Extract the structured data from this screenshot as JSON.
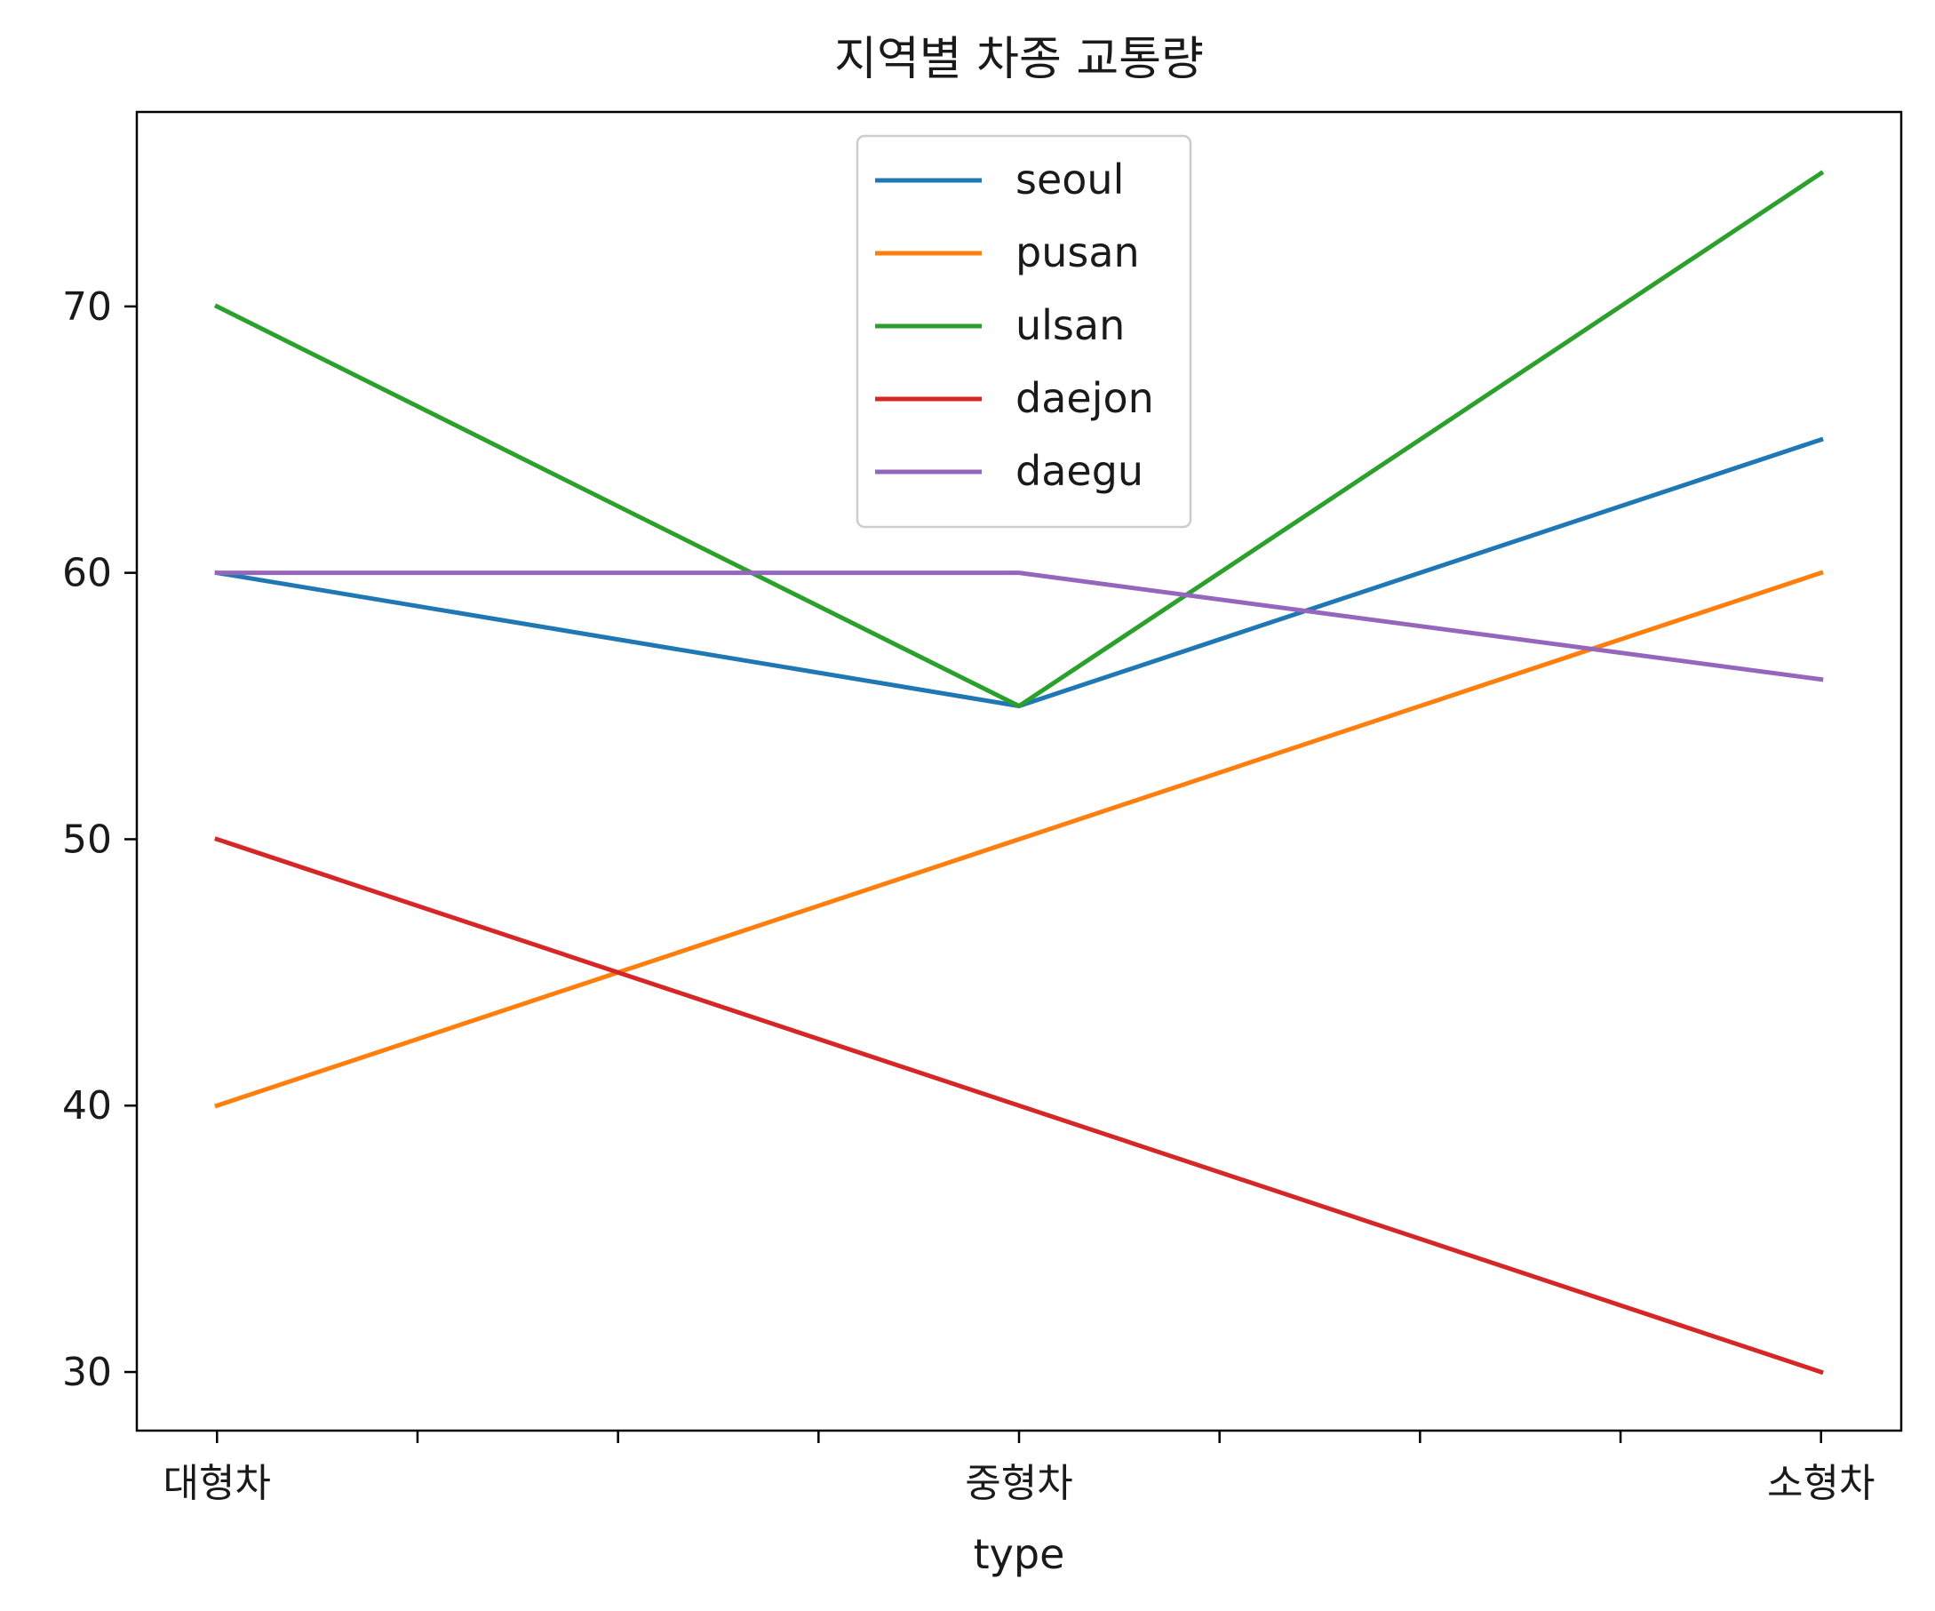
{
  "chart_data": {
    "type": "line",
    "title": "지역별 차종 교통량",
    "xlabel": "type",
    "ylabel": "",
    "categories": [
      "대형차",
      "중형차",
      "소형차"
    ],
    "xlim": [
      -0.1,
      2.1
    ],
    "ylim": [
      27.8,
      77.3
    ],
    "yticks": [
      30,
      40,
      50,
      60,
      70
    ],
    "minor_xticks": [
      0.25,
      0.5,
      0.75,
      1.25,
      1.5,
      1.75
    ],
    "grid": false,
    "legend_position": "upper-center",
    "series": [
      {
        "name": "seoul",
        "color": "#1f77b4",
        "values": [
          60,
          55,
          65
        ]
      },
      {
        "name": "pusan",
        "color": "#ff7f0e",
        "values": [
          40,
          50,
          60
        ]
      },
      {
        "name": "ulsan",
        "color": "#2ca02c",
        "values": [
          70,
          55,
          75
        ]
      },
      {
        "name": "daejon",
        "color": "#d62728",
        "values": [
          50,
          40,
          30
        ]
      },
      {
        "name": "daegu",
        "color": "#9467bd",
        "values": [
          60,
          60,
          56
        ]
      }
    ]
  }
}
